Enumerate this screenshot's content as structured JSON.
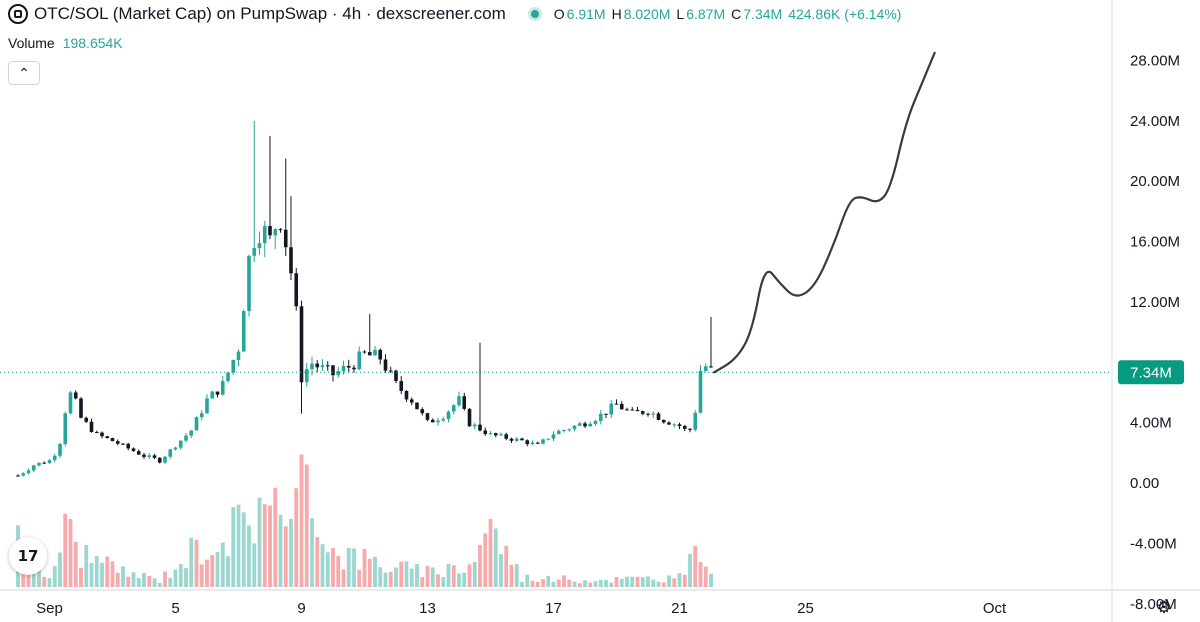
{
  "header": {
    "title": "OTC/SOL (Market Cap) on PumpSwap · 4h · dexscreener.com",
    "o_label": "O",
    "o_value": "6.91M",
    "h_label": "H",
    "h_value": "8.020M",
    "l_label": "L",
    "l_value": "6.87M",
    "c_label": "C",
    "c_value": "7.34M",
    "change": "424.86K (+6.14%)"
  },
  "volume": {
    "label": "Volume",
    "value": "198.654K"
  },
  "icons": {
    "symbol": "symbol-icon",
    "collapse": "chevron-up-icon",
    "logo": "tradingview-logo-icon",
    "settings": "gear-icon"
  },
  "logo_text": "17",
  "collapse_glyph": "⌃",
  "settings_glyph": "⚙",
  "colors": {
    "up": "#26a69a",
    "down": "#131722",
    "vol_up": "#9bd6cf",
    "vol_down": "#f7a9ab",
    "price_tag": "#089981"
  },
  "chart_data": {
    "type": "candlestick",
    "title": "OTC/SOL (Market Cap) on PumpSwap · 4h · dexscreener.com",
    "ylim": [
      -9.2,
      32
    ],
    "y_ticks": [
      {
        "v": 28,
        "label": "28.00M"
      },
      {
        "v": 24,
        "label": "24.00M"
      },
      {
        "v": 20,
        "label": "20.00M"
      },
      {
        "v": 16,
        "label": "16.00M"
      },
      {
        "v": 12,
        "label": "12.00M"
      },
      {
        "v": 4,
        "label": "4.00M"
      },
      {
        "v": 0,
        "label": "0.00"
      },
      {
        "v": -4,
        "label": "-4.00M"
      },
      {
        "v": -8,
        "label": "-8.00M"
      }
    ],
    "x_ticks": [
      {
        "d": 1,
        "label": "Sep"
      },
      {
        "d": 5,
        "label": "5"
      },
      {
        "d": 9,
        "label": "9"
      },
      {
        "d": 13,
        "label": "13"
      },
      {
        "d": 17,
        "label": "17"
      },
      {
        "d": 21,
        "label": "21"
      },
      {
        "d": 25,
        "label": "25"
      },
      {
        "d": 31,
        "label": "Oct"
      }
    ],
    "last_price": {
      "v": 7.34,
      "label": "7.34M"
    },
    "close_path": [
      {
        "d": 0.0,
        "v": 0.5
      },
      {
        "d": 0.5,
        "v": 1.2
      },
      {
        "d": 1.0,
        "v": 1.5
      },
      {
        "d": 1.3,
        "v": 2.3
      },
      {
        "d": 1.5,
        "v": 4.8
      },
      {
        "d": 1.7,
        "v": 6.1
      },
      {
        "d": 2.0,
        "v": 4.3
      },
      {
        "d": 2.5,
        "v": 3.2
      },
      {
        "d": 3.0,
        "v": 2.8
      },
      {
        "d": 3.5,
        "v": 2.3
      },
      {
        "d": 4.0,
        "v": 1.8
      },
      {
        "d": 4.5,
        "v": 1.5
      },
      {
        "d": 5.0,
        "v": 2.5
      },
      {
        "d": 5.5,
        "v": 3.5
      },
      {
        "d": 6.0,
        "v": 5.5
      },
      {
        "d": 6.5,
        "v": 6.5
      },
      {
        "d": 7.0,
        "v": 9.0
      },
      {
        "d": 7.4,
        "v": 16.0
      },
      {
        "d": 7.7,
        "v": 17.0
      },
      {
        "d": 8.0,
        "v": 16.0
      },
      {
        "d": 8.3,
        "v": 18.0
      },
      {
        "d": 8.6,
        "v": 15.0
      },
      {
        "d": 8.8,
        "v": 12.0
      },
      {
        "d": 9.0,
        "v": 7.0
      },
      {
        "d": 9.3,
        "v": 8.0
      },
      {
        "d": 9.7,
        "v": 7.5
      },
      {
        "d": 10.0,
        "v": 7.2
      },
      {
        "d": 10.5,
        "v": 7.7
      },
      {
        "d": 11.0,
        "v": 8.5
      },
      {
        "d": 11.5,
        "v": 8.3
      },
      {
        "d": 12.0,
        "v": 6.5
      },
      {
        "d": 12.5,
        "v": 5.5
      },
      {
        "d": 13.0,
        "v": 4.0
      },
      {
        "d": 13.5,
        "v": 4.5
      },
      {
        "d": 14.0,
        "v": 5.5
      },
      {
        "d": 14.3,
        "v": 4.0
      },
      {
        "d": 15.0,
        "v": 3.2
      },
      {
        "d": 16.0,
        "v": 2.8
      },
      {
        "d": 16.5,
        "v": 2.5
      },
      {
        "d": 17.0,
        "v": 3.3
      },
      {
        "d": 18.0,
        "v": 4.0
      },
      {
        "d": 18.5,
        "v": 4.5
      },
      {
        "d": 19.0,
        "v": 5.2
      },
      {
        "d": 19.5,
        "v": 4.6
      },
      {
        "d": 20.0,
        "v": 4.8
      },
      {
        "d": 20.5,
        "v": 4.2
      },
      {
        "d": 21.0,
        "v": 3.8
      },
      {
        "d": 21.3,
        "v": 3.3
      },
      {
        "d": 21.5,
        "v": 4.8
      },
      {
        "d": 21.7,
        "v": 8.0
      },
      {
        "d": 21.9,
        "v": 7.6
      },
      {
        "d": 22.1,
        "v": 7.34
      }
    ],
    "spikes": [
      {
        "d": 7.55,
        "hi": 24.0
      },
      {
        "d": 8.0,
        "hi": 23.0
      },
      {
        "d": 8.45,
        "hi": 21.5
      },
      {
        "d": 8.7,
        "hi": 19.0
      },
      {
        "d": 11.2,
        "hi": 11.2
      },
      {
        "d": 14.6,
        "hi": 9.3
      },
      {
        "d": 21.95,
        "hi": 11.0
      },
      {
        "d": 9.05,
        "lo": 4.6
      }
    ],
    "projection": [
      {
        "d": 22.1,
        "v": 7.34
      },
      {
        "d": 22.8,
        "v": 8.2
      },
      {
        "d": 23.3,
        "v": 10.0
      },
      {
        "d": 23.7,
        "v": 14.5
      },
      {
        "d": 24.2,
        "v": 13.2
      },
      {
        "d": 24.7,
        "v": 12.2
      },
      {
        "d": 25.3,
        "v": 13.0
      },
      {
        "d": 25.9,
        "v": 15.8
      },
      {
        "d": 26.4,
        "v": 18.8
      },
      {
        "d": 26.8,
        "v": 19.0
      },
      {
        "d": 27.3,
        "v": 18.5
      },
      {
        "d": 27.7,
        "v": 19.5
      },
      {
        "d": 28.2,
        "v": 24.0
      },
      {
        "d": 28.7,
        "v": 26.5
      },
      {
        "d": 29.1,
        "v": 28.5
      }
    ],
    "volume_max": 1.0,
    "volume_profile": [
      {
        "d": 0.0,
        "v": 0.55
      },
      {
        "d": 0.3,
        "v": 0.2
      },
      {
        "d": 1.0,
        "v": 0.08
      },
      {
        "d": 1.5,
        "v": 0.5
      },
      {
        "d": 2.0,
        "v": 0.3
      },
      {
        "d": 3.0,
        "v": 0.15
      },
      {
        "d": 4.5,
        "v": 0.06
      },
      {
        "d": 5.5,
        "v": 0.3
      },
      {
        "d": 6.5,
        "v": 0.45
      },
      {
        "d": 7.4,
        "v": 0.55
      },
      {
        "d": 7.9,
        "v": 1.0
      },
      {
        "d": 8.5,
        "v": 0.4
      },
      {
        "d": 9.2,
        "v": 0.92
      },
      {
        "d": 10.0,
        "v": 0.3
      },
      {
        "d": 11.5,
        "v": 0.2
      },
      {
        "d": 13.0,
        "v": 0.12
      },
      {
        "d": 14.5,
        "v": 0.2
      },
      {
        "d": 14.8,
        "v": 0.6
      },
      {
        "d": 16.0,
        "v": 0.08
      },
      {
        "d": 18.0,
        "v": 0.06
      },
      {
        "d": 21.0,
        "v": 0.08
      },
      {
        "d": 21.8,
        "v": 0.35
      },
      {
        "d": 22.1,
        "v": 0.08
      }
    ]
  }
}
